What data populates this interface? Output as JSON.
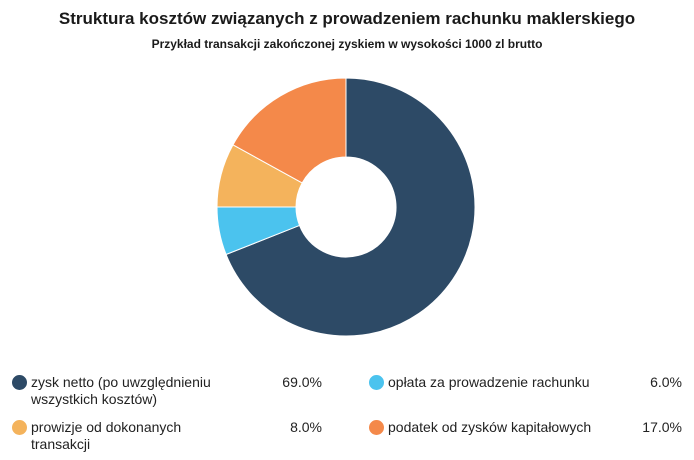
{
  "chart_data": {
    "type": "pie",
    "donut": true,
    "title": "Struktura kosztów związanych z prowadzeniem rachunku maklerskiego",
    "subtitle": "Przykład transakcji zakończonej zyskiem w wysokości 1000 zl brutto",
    "legend_position": "bottom",
    "slices": [
      {
        "label_lines": [
          "zysk netto (po uwzględnieniu",
          "wszystkich kosztów)"
        ],
        "value": 69.0,
        "value_label": "69.0%",
        "color": "#2d4a66"
      },
      {
        "label_lines": [
          "opłata za prowadzenie rachunku"
        ],
        "value": 6.0,
        "value_label": "6.0%",
        "color": "#4bc3ee"
      },
      {
        "label_lines": [
          "prowizje od dokonanych",
          "transakcji"
        ],
        "value": 8.0,
        "value_label": "8.0%",
        "color": "#f4b35c"
      },
      {
        "label_lines": [
          "podatek od zysków kapitałowych"
        ],
        "value": 17.0,
        "value_label": "17.0%",
        "color": "#f4894a"
      }
    ]
  }
}
